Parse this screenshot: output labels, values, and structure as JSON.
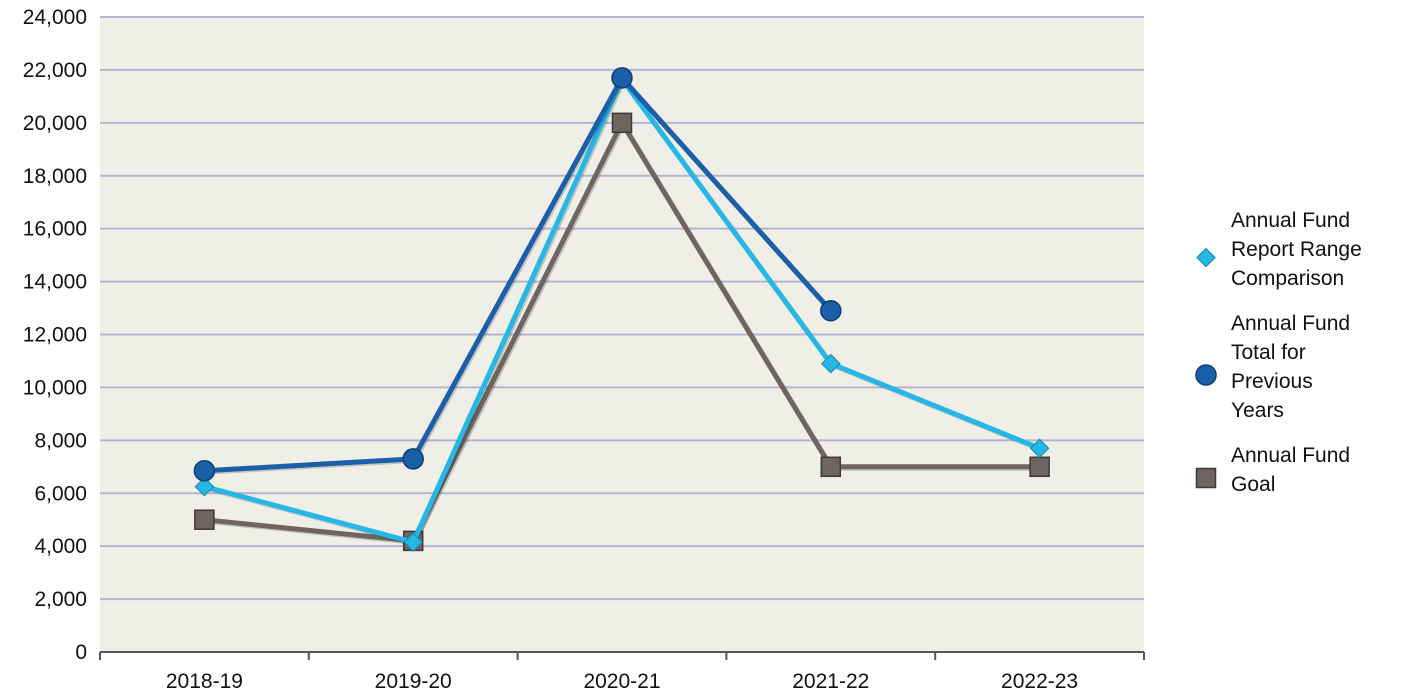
{
  "chart_data": {
    "type": "line",
    "title": "",
    "xlabel": "",
    "ylabel": "",
    "categories": [
      "2018-19",
      "2019-20",
      "2020-21",
      "2021-22",
      "2022-23"
    ],
    "ylim": [
      0,
      24000
    ],
    "yticks": [
      0,
      2000,
      4000,
      6000,
      8000,
      10000,
      12000,
      14000,
      16000,
      18000,
      20000,
      22000,
      24000
    ],
    "ytick_labels": [
      "0",
      "2,000",
      "4,000",
      "6,000",
      "8,000",
      "10,000",
      "12,000",
      "14,000",
      "16,000",
      "18,000",
      "20,000",
      "22,000",
      "24,000"
    ],
    "grid": "horizontal",
    "plot_background": "#efefe8",
    "gridline_color": "#b4b4d2",
    "legend_position": "right",
    "series": [
      {
        "name": "Annual Fund Goal",
        "legend_lines": [
          "Annual Fund",
          "Goal"
        ],
        "color": "#6e6561",
        "marker": "square",
        "values": [
          5000,
          4200,
          20000,
          7000,
          7000
        ]
      },
      {
        "name": "Annual Fund Report Range Comparison",
        "legend_lines": [
          "Annual Fund",
          "Report Range",
          "Comparison"
        ],
        "color": "#27b7e6",
        "marker": "diamond",
        "values": [
          6250,
          4150,
          21650,
          10900,
          7700
        ]
      },
      {
        "name": "Annual Fund Total for Previous Years",
        "legend_lines": [
          "Annual Fund",
          "Total for",
          "Previous",
          "Years"
        ],
        "color": "#1a5fa8",
        "marker": "circle",
        "values": [
          6850,
          7300,
          21700,
          12900,
          null
        ]
      }
    ],
    "legend_order": [
      1,
      2,
      0
    ]
  }
}
